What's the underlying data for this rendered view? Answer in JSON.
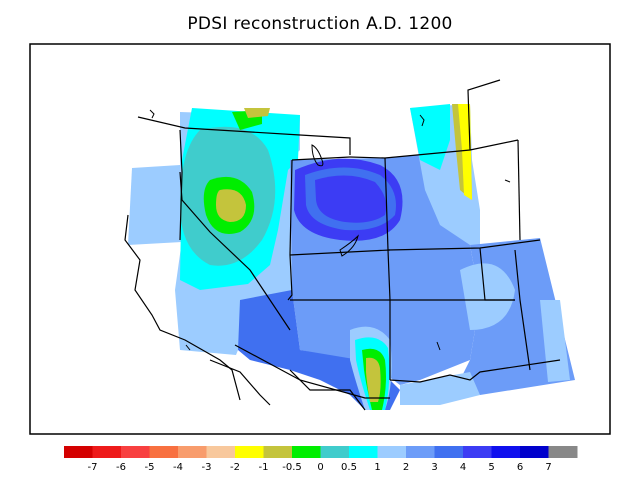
{
  "title": "PDSI reconstruction A.D. 1200",
  "legend": {
    "colors": [
      "#d40000",
      "#ee1a1a",
      "#f84040",
      "#f87040",
      "#f89c6c",
      "#f8c89c",
      "#ffff00",
      "#c4c43c",
      "#00ee00",
      "#40cccc",
      "#00ffff",
      "#9cccff",
      "#6c9cf8",
      "#4070f0",
      "#3c3cf4",
      "#1010ee",
      "#0000cc",
      "#888888"
    ],
    "ticks": [
      "-7",
      "-6",
      "-5",
      "-4",
      "-3",
      "-2",
      "-1",
      "-0.5",
      "0",
      "0.5",
      "1",
      "2",
      "3",
      "4",
      "5",
      "6",
      "7"
    ]
  }
}
